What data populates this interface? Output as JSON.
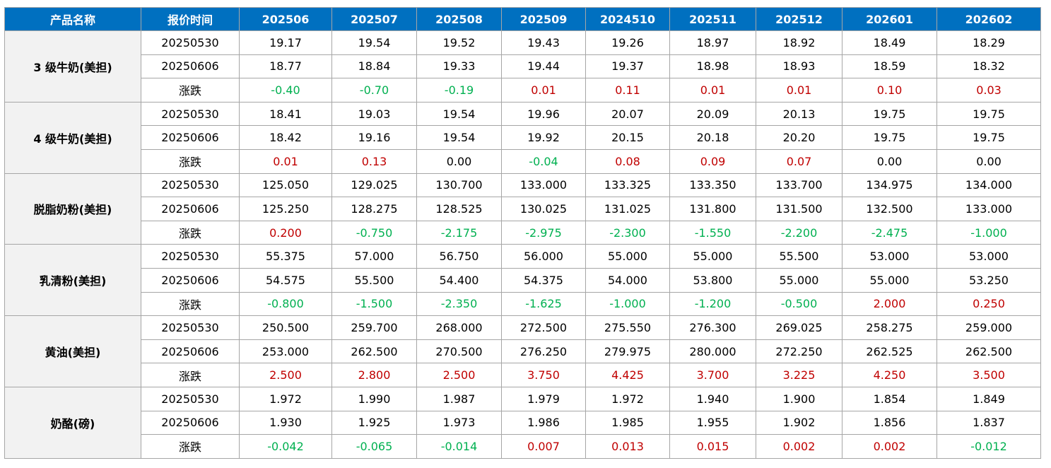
{
  "header": [
    "产品名称",
    "报价时间",
    "202506",
    "202507",
    "202508",
    "202509",
    "2024510",
    "202511",
    "202512",
    "202601",
    "202602"
  ],
  "colors": {
    "header_bg": "#0070c0",
    "up": "#c00000",
    "down": "#00b050",
    "product_bg": "#f2f2f2"
  },
  "groups": [
    {
      "product": "3 级牛奶(美担)",
      "rows": [
        {
          "label": "20250530",
          "values": [
            "19.17",
            "19.54",
            "19.52",
            "19.43",
            "19.26",
            "18.97",
            "18.92",
            "18.49",
            "18.29"
          ]
        },
        {
          "label": "20250606",
          "values": [
            "18.77",
            "18.84",
            "19.33",
            "19.44",
            "19.37",
            "18.98",
            "18.93",
            "18.59",
            "18.32"
          ]
        },
        {
          "label": "涨跌",
          "values": [
            "-0.40",
            "-0.70",
            "-0.19",
            "0.01",
            "0.11",
            "0.01",
            "0.01",
            "0.10",
            "0.03"
          ]
        }
      ]
    },
    {
      "product": "4 级牛奶(美担)",
      "rows": [
        {
          "label": "20250530",
          "values": [
            "18.41",
            "19.03",
            "19.54",
            "19.96",
            "20.07",
            "20.09",
            "20.13",
            "19.75",
            "19.75"
          ]
        },
        {
          "label": "20250606",
          "values": [
            "18.42",
            "19.16",
            "19.54",
            "19.92",
            "20.15",
            "20.18",
            "20.20",
            "19.75",
            "19.75"
          ]
        },
        {
          "label": "涨跌",
          "values": [
            "0.01",
            "0.13",
            "0.00",
            "-0.04",
            "0.08",
            "0.09",
            "0.07",
            "0.00",
            "0.00"
          ]
        }
      ]
    },
    {
      "product": "脱脂奶粉(美担)",
      "rows": [
        {
          "label": "20250530",
          "values": [
            "125.050",
            "129.025",
            "130.700",
            "133.000",
            "133.325",
            "133.350",
            "133.700",
            "134.975",
            "134.000"
          ]
        },
        {
          "label": "20250606",
          "values": [
            "125.250",
            "128.275",
            "128.525",
            "130.025",
            "131.025",
            "131.800",
            "131.500",
            "132.500",
            "133.000"
          ]
        },
        {
          "label": "涨跌",
          "values": [
            "0.200",
            "-0.750",
            "-2.175",
            "-2.975",
            "-2.300",
            "-1.550",
            "-2.200",
            "-2.475",
            "-1.000"
          ]
        }
      ]
    },
    {
      "product": "乳清粉(美担)",
      "rows": [
        {
          "label": "20250530",
          "values": [
            "55.375",
            "57.000",
            "56.750",
            "56.000",
            "55.000",
            "55.000",
            "55.500",
            "53.000",
            "53.000"
          ]
        },
        {
          "label": "20250606",
          "values": [
            "54.575",
            "55.500",
            "54.400",
            "54.375",
            "54.000",
            "53.800",
            "55.000",
            "55.000",
            "53.250"
          ]
        },
        {
          "label": "涨跌",
          "values": [
            "-0.800",
            "-1.500",
            "-2.350",
            "-1.625",
            "-1.000",
            "-1.200",
            "-0.500",
            "2.000",
            "0.250"
          ]
        }
      ]
    },
    {
      "product": "黄油(美担)",
      "rows": [
        {
          "label": "20250530",
          "values": [
            "250.500",
            "259.700",
            "268.000",
            "272.500",
            "275.550",
            "276.300",
            "269.025",
            "258.275",
            "259.000"
          ]
        },
        {
          "label": "20250606",
          "values": [
            "253.000",
            "262.500",
            "270.500",
            "276.250",
            "279.975",
            "280.000",
            "272.250",
            "262.525",
            "262.500"
          ]
        },
        {
          "label": "涨跌",
          "values": [
            "2.500",
            "2.800",
            "2.500",
            "3.750",
            "4.425",
            "3.700",
            "3.225",
            "4.250",
            "3.500"
          ]
        }
      ]
    },
    {
      "product": "奶酪(磅)",
      "rows": [
        {
          "label": "20250530",
          "values": [
            "1.972",
            "1.990",
            "1.987",
            "1.979",
            "1.972",
            "1.940",
            "1.900",
            "1.854",
            "1.849"
          ]
        },
        {
          "label": "20250606",
          "values": [
            "1.930",
            "1.925",
            "1.973",
            "1.986",
            "1.985",
            "1.955",
            "1.902",
            "1.856",
            "1.837"
          ]
        },
        {
          "label": "涨跌",
          "values": [
            "-0.042",
            "-0.065",
            "-0.014",
            "0.007",
            "0.013",
            "0.015",
            "0.002",
            "0.002",
            "-0.012"
          ]
        }
      ]
    }
  ]
}
